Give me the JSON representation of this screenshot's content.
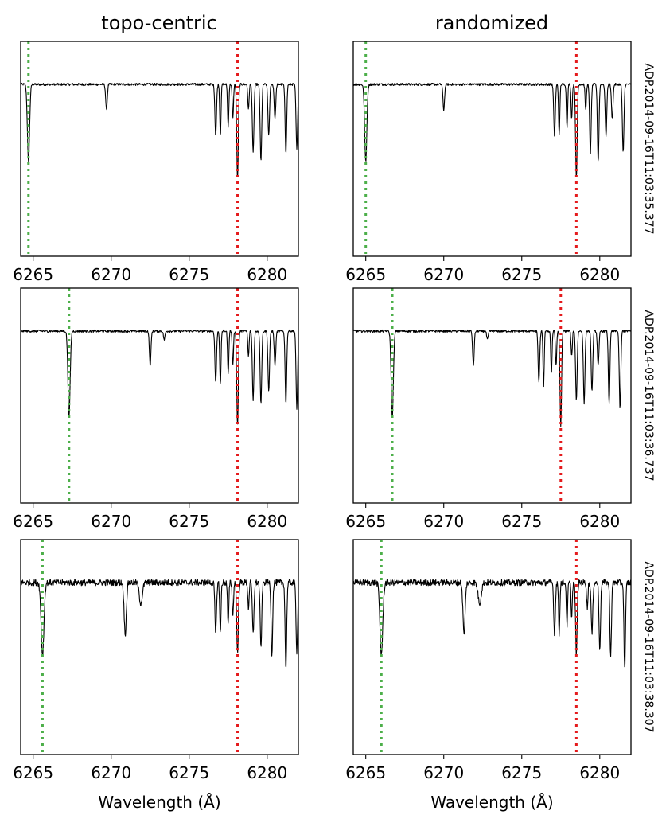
{
  "figure": {
    "columns": [
      "topo-centric",
      "randomized"
    ],
    "rows": [
      "ADP.2014-09-16T11:03:35.377",
      "ADP.2014-09-16T11:03:36.737",
      "ADP.2014-09-16T11:03:38.307"
    ],
    "xlabel": "Wavelength (Å)"
  },
  "colors": {
    "green_marker": "#4daf4a",
    "red_marker": "#e41a1c",
    "spectrum": "#000000"
  },
  "chart_data": [
    {
      "type": "line",
      "title": "topo-centric",
      "row_label": "ADP.2014-09-16T11:03:35.377",
      "xlabel": "",
      "xlim": [
        6264.2,
        6282.0
      ],
      "ylim": [
        0,
        1.25
      ],
      "xticks": [
        6265,
        6270,
        6275,
        6280
      ],
      "green_line_x": 6264.7,
      "red_line_x": 6278.1,
      "lines": [
        {
          "center": 6264.7,
          "depth": 0.45,
          "width": 0.07
        },
        {
          "center": 6269.7,
          "depth": 0.15,
          "width": 0.05
        },
        {
          "center": 6276.7,
          "depth": 0.3,
          "width": 0.05
        },
        {
          "center": 6277.0,
          "depth": 0.3,
          "width": 0.04
        },
        {
          "center": 6277.5,
          "depth": 0.25,
          "width": 0.04
        },
        {
          "center": 6277.8,
          "depth": 0.2,
          "width": 0.04
        },
        {
          "center": 6278.1,
          "depth": 0.55,
          "width": 0.05
        },
        {
          "center": 6278.8,
          "depth": 0.15,
          "width": 0.04
        },
        {
          "center": 6279.1,
          "depth": 0.4,
          "width": 0.05
        },
        {
          "center": 6279.6,
          "depth": 0.45,
          "width": 0.05
        },
        {
          "center": 6280.1,
          "depth": 0.3,
          "width": 0.05
        },
        {
          "center": 6280.5,
          "depth": 0.2,
          "width": 0.05
        },
        {
          "center": 6281.2,
          "depth": 0.4,
          "width": 0.05
        },
        {
          "center": 6281.9,
          "depth": 0.38,
          "width": 0.05
        }
      ]
    },
    {
      "type": "line",
      "title": "randomized",
      "row_label": "ADP.2014-09-16T11:03:35.377",
      "xlabel": "",
      "xlim": [
        6264.2,
        6282.0
      ],
      "ylim": [
        0,
        1.25
      ],
      "xticks": [
        6265,
        6270,
        6275,
        6280
      ],
      "green_line_x": 6265.0,
      "red_line_x": 6278.5,
      "lines": [
        {
          "center": 6265.0,
          "depth": 0.45,
          "width": 0.07
        },
        {
          "center": 6270.0,
          "depth": 0.15,
          "width": 0.05
        },
        {
          "center": 6277.1,
          "depth": 0.3,
          "width": 0.05
        },
        {
          "center": 6277.4,
          "depth": 0.3,
          "width": 0.04
        },
        {
          "center": 6277.9,
          "depth": 0.25,
          "width": 0.04
        },
        {
          "center": 6278.2,
          "depth": 0.2,
          "width": 0.04
        },
        {
          "center": 6278.5,
          "depth": 0.55,
          "width": 0.05
        },
        {
          "center": 6279.1,
          "depth": 0.15,
          "width": 0.04
        },
        {
          "center": 6279.4,
          "depth": 0.4,
          "width": 0.05
        },
        {
          "center": 6279.9,
          "depth": 0.45,
          "width": 0.05
        },
        {
          "center": 6280.4,
          "depth": 0.3,
          "width": 0.05
        },
        {
          "center": 6280.8,
          "depth": 0.2,
          "width": 0.05
        },
        {
          "center": 6281.5,
          "depth": 0.4,
          "width": 0.05
        }
      ]
    },
    {
      "type": "line",
      "title": "topo-centric",
      "row_label": "ADP.2014-09-16T11:03:36.737",
      "xlabel": "",
      "xlim": [
        6264.2,
        6282.0
      ],
      "ylim": [
        0,
        1.25
      ],
      "xticks": [
        6265,
        6270,
        6275,
        6280
      ],
      "green_line_x": 6267.3,
      "red_line_x": 6278.1,
      "lines": [
        {
          "center": 6267.3,
          "depth": 0.5,
          "width": 0.07
        },
        {
          "center": 6272.5,
          "depth": 0.2,
          "width": 0.05
        },
        {
          "center": 6273.4,
          "depth": 0.05,
          "width": 0.05
        },
        {
          "center": 6276.7,
          "depth": 0.3,
          "width": 0.05
        },
        {
          "center": 6277.0,
          "depth": 0.32,
          "width": 0.04
        },
        {
          "center": 6277.5,
          "depth": 0.25,
          "width": 0.04
        },
        {
          "center": 6277.8,
          "depth": 0.2,
          "width": 0.04
        },
        {
          "center": 6278.1,
          "depth": 0.55,
          "width": 0.05
        },
        {
          "center": 6278.8,
          "depth": 0.15,
          "width": 0.04
        },
        {
          "center": 6279.1,
          "depth": 0.4,
          "width": 0.05
        },
        {
          "center": 6279.6,
          "depth": 0.42,
          "width": 0.05
        },
        {
          "center": 6280.1,
          "depth": 0.35,
          "width": 0.05
        },
        {
          "center": 6280.5,
          "depth": 0.2,
          "width": 0.05
        },
        {
          "center": 6281.2,
          "depth": 0.42,
          "width": 0.05
        },
        {
          "center": 6281.9,
          "depth": 0.45,
          "width": 0.05
        }
      ]
    },
    {
      "type": "line",
      "title": "randomized",
      "row_label": "ADP.2014-09-16T11:03:36.737",
      "xlabel": "",
      "xlim": [
        6264.2,
        6282.0
      ],
      "ylim": [
        0,
        1.25
      ],
      "xticks": [
        6265,
        6270,
        6275,
        6280
      ],
      "green_line_x": 6266.7,
      "red_line_x": 6277.5,
      "lines": [
        {
          "center": 6266.7,
          "depth": 0.5,
          "width": 0.07
        },
        {
          "center": 6271.9,
          "depth": 0.2,
          "width": 0.05
        },
        {
          "center": 6272.8,
          "depth": 0.05,
          "width": 0.05
        },
        {
          "center": 6276.1,
          "depth": 0.3,
          "width": 0.05
        },
        {
          "center": 6276.4,
          "depth": 0.32,
          "width": 0.04
        },
        {
          "center": 6276.9,
          "depth": 0.25,
          "width": 0.04
        },
        {
          "center": 6277.2,
          "depth": 0.2,
          "width": 0.04
        },
        {
          "center": 6277.5,
          "depth": 0.55,
          "width": 0.05
        },
        {
          "center": 6278.2,
          "depth": 0.15,
          "width": 0.04
        },
        {
          "center": 6278.5,
          "depth": 0.4,
          "width": 0.05
        },
        {
          "center": 6279.0,
          "depth": 0.42,
          "width": 0.05
        },
        {
          "center": 6279.5,
          "depth": 0.35,
          "width": 0.05
        },
        {
          "center": 6279.9,
          "depth": 0.2,
          "width": 0.05
        },
        {
          "center": 6280.6,
          "depth": 0.42,
          "width": 0.05
        },
        {
          "center": 6281.3,
          "depth": 0.45,
          "width": 0.05
        }
      ]
    },
    {
      "type": "line",
      "title": "topo-centric",
      "row_label": "ADP.2014-09-16T11:03:38.307",
      "xlabel": "Wavelength (Å)",
      "xlim": [
        6264.2,
        6282.0
      ],
      "ylim": [
        0,
        1.25
      ],
      "xticks": [
        6265,
        6270,
        6275,
        6280
      ],
      "green_line_x": 6265.6,
      "red_line_x": 6278.1,
      "lines": [
        {
          "center": 6265.6,
          "depth": 0.42,
          "width": 0.09
        },
        {
          "center": 6270.9,
          "depth": 0.3,
          "width": 0.07
        },
        {
          "center": 6271.9,
          "depth": 0.12,
          "width": 0.1
        },
        {
          "center": 6276.7,
          "depth": 0.3,
          "width": 0.05
        },
        {
          "center": 6277.0,
          "depth": 0.3,
          "width": 0.04
        },
        {
          "center": 6277.5,
          "depth": 0.25,
          "width": 0.04
        },
        {
          "center": 6277.8,
          "depth": 0.2,
          "width": 0.04
        },
        {
          "center": 6278.1,
          "depth": 0.42,
          "width": 0.05
        },
        {
          "center": 6278.8,
          "depth": 0.15,
          "width": 0.04
        },
        {
          "center": 6279.1,
          "depth": 0.3,
          "width": 0.05
        },
        {
          "center": 6279.6,
          "depth": 0.38,
          "width": 0.05
        },
        {
          "center": 6280.3,
          "depth": 0.42,
          "width": 0.05
        },
        {
          "center": 6281.2,
          "depth": 0.5,
          "width": 0.05
        },
        {
          "center": 6281.9,
          "depth": 0.4,
          "width": 0.05
        }
      ]
    },
    {
      "type": "line",
      "title": "randomized",
      "row_label": "ADP.2014-09-16T11:03:38.307",
      "xlabel": "Wavelength (Å)",
      "xlim": [
        6264.2,
        6282.0
      ],
      "ylim": [
        0,
        1.25
      ],
      "xticks": [
        6265,
        6270,
        6275,
        6280
      ],
      "green_line_x": 6266.0,
      "red_line_x": 6278.5,
      "lines": [
        {
          "center": 6266.0,
          "depth": 0.42,
          "width": 0.09
        },
        {
          "center": 6271.3,
          "depth": 0.3,
          "width": 0.07
        },
        {
          "center": 6272.3,
          "depth": 0.12,
          "width": 0.1
        },
        {
          "center": 6277.1,
          "depth": 0.3,
          "width": 0.05
        },
        {
          "center": 6277.4,
          "depth": 0.3,
          "width": 0.04
        },
        {
          "center": 6277.9,
          "depth": 0.25,
          "width": 0.04
        },
        {
          "center": 6278.2,
          "depth": 0.2,
          "width": 0.04
        },
        {
          "center": 6278.5,
          "depth": 0.42,
          "width": 0.05
        },
        {
          "center": 6279.2,
          "depth": 0.15,
          "width": 0.04
        },
        {
          "center": 6279.5,
          "depth": 0.3,
          "width": 0.05
        },
        {
          "center": 6280.0,
          "depth": 0.38,
          "width": 0.05
        },
        {
          "center": 6280.7,
          "depth": 0.42,
          "width": 0.05
        },
        {
          "center": 6281.6,
          "depth": 0.5,
          "width": 0.05
        }
      ]
    }
  ]
}
